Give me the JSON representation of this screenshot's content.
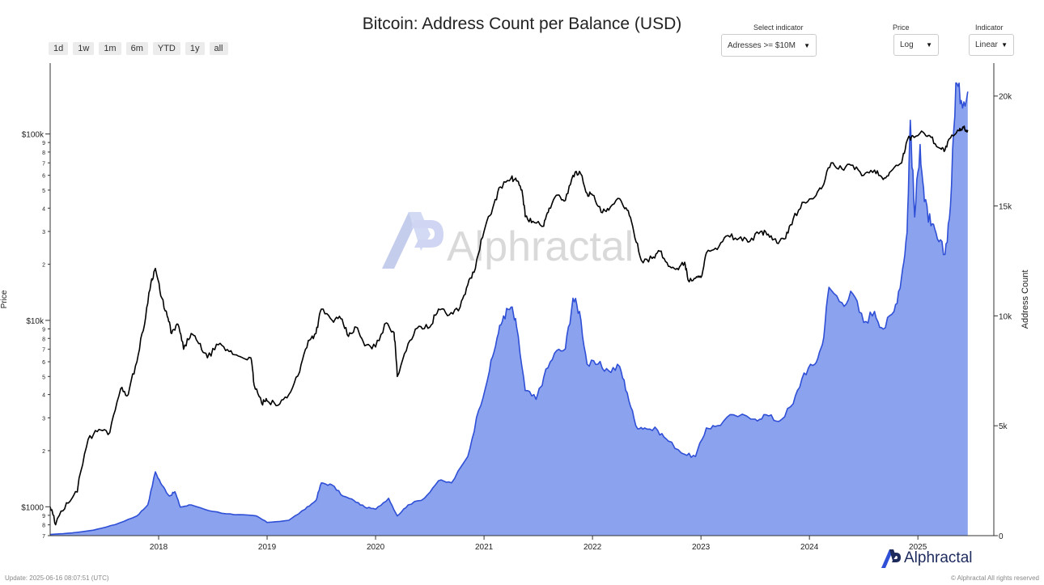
{
  "chart_title": "Bitcoin: Address Count per Balance (USD)",
  "range_buttons": [
    "1d",
    "1w",
    "1m",
    "6m",
    "YTD",
    "1y",
    "all"
  ],
  "controls": {
    "indicator_label": "Select indicator",
    "indicator_value": "Adresses >= $10M",
    "price_label": "Price",
    "price_value": "Log",
    "scale_label": "Indicator",
    "scale_value": "Linear"
  },
  "watermark": "Alphractal",
  "brand": "Alphractal",
  "footer": {
    "update": "Update: 2025-06-16 08:07:51 (UTC)",
    "copyright": "© Alphractal All rights reserved"
  },
  "colors": {
    "price_line": "#000000",
    "area_fill": "#8ba3ef",
    "area_line": "#2f4fd6",
    "brand": "#1d2a5c"
  },
  "chart_data": {
    "type": "line+area",
    "title": "Bitcoin: Address Count per Balance (USD)",
    "left_axis": {
      "label": "Price",
      "scale": "log",
      "range": [
        700,
        240000
      ],
      "major_ticks": [
        {
          "value": 1000,
          "label": "$1000"
        },
        {
          "value": 10000,
          "label": "$10k"
        },
        {
          "value": 100000,
          "label": "$100k"
        }
      ],
      "minor_ticks": [
        {
          "value": 700,
          "label": "7"
        },
        {
          "value": 800,
          "label": "8"
        },
        {
          "value": 900,
          "label": "9"
        },
        {
          "value": 2000,
          "label": "2"
        },
        {
          "value": 3000,
          "label": "3"
        },
        {
          "value": 4000,
          "label": "4"
        },
        {
          "value": 5000,
          "label": "5"
        },
        {
          "value": 6000,
          "label": "6"
        },
        {
          "value": 7000,
          "label": "7"
        },
        {
          "value": 8000,
          "label": "8"
        },
        {
          "value": 9000,
          "label": "9"
        },
        {
          "value": 20000,
          "label": "2"
        },
        {
          "value": 30000,
          "label": "3"
        },
        {
          "value": 40000,
          "label": "4"
        },
        {
          "value": 50000,
          "label": "5"
        },
        {
          "value": 60000,
          "label": "6"
        },
        {
          "value": 70000,
          "label": "7"
        },
        {
          "value": 80000,
          "label": "8"
        },
        {
          "value": 90000,
          "label": "9"
        }
      ]
    },
    "right_axis": {
      "label": "Address Count",
      "scale": "linear",
      "range": [
        0,
        21500
      ],
      "ticks": [
        {
          "value": 0,
          "label": "0"
        },
        {
          "value": 5000,
          "label": "5k"
        },
        {
          "value": 10000,
          "label": "10k"
        },
        {
          "value": 15000,
          "label": "15k"
        },
        {
          "value": 20000,
          "label": "20k"
        }
      ]
    },
    "x_axis": {
      "range": [
        2017.0,
        2025.7
      ],
      "ticks": [
        {
          "value": 2018,
          "label": "2018"
        },
        {
          "value": 2019,
          "label": "2019"
        },
        {
          "value": 2020,
          "label": "2020"
        },
        {
          "value": 2021,
          "label": "2021"
        },
        {
          "value": 2022,
          "label": "2022"
        },
        {
          "value": 2023,
          "label": "2023"
        },
        {
          "value": 2024,
          "label": "2024"
        },
        {
          "value": 2025,
          "label": "2025"
        }
      ]
    },
    "series": [
      {
        "name": "Price",
        "axis": "left",
        "points": [
          [
            2017.0,
            1000
          ],
          [
            2017.05,
            800
          ],
          [
            2017.15,
            1050
          ],
          [
            2017.25,
            1200
          ],
          [
            2017.35,
            2300
          ],
          [
            2017.45,
            2600
          ],
          [
            2017.55,
            2500
          ],
          [
            2017.65,
            4300
          ],
          [
            2017.72,
            4000
          ],
          [
            2017.8,
            6000
          ],
          [
            2017.87,
            9500
          ],
          [
            2017.93,
            16000
          ],
          [
            2017.97,
            19000
          ],
          [
            2018.02,
            13500
          ],
          [
            2018.08,
            10500
          ],
          [
            2018.12,
            8500
          ],
          [
            2018.18,
            9500
          ],
          [
            2018.23,
            7000
          ],
          [
            2018.3,
            8500
          ],
          [
            2018.37,
            7500
          ],
          [
            2018.45,
            6300
          ],
          [
            2018.55,
            7400
          ],
          [
            2018.65,
            6800
          ],
          [
            2018.75,
            6400
          ],
          [
            2018.85,
            6300
          ],
          [
            2018.88,
            4500
          ],
          [
            2018.95,
            3600
          ],
          [
            2019.0,
            3700
          ],
          [
            2019.1,
            3500
          ],
          [
            2019.2,
            4000
          ],
          [
            2019.3,
            5300
          ],
          [
            2019.38,
            7800
          ],
          [
            2019.45,
            8500
          ],
          [
            2019.5,
            11500
          ],
          [
            2019.6,
            10000
          ],
          [
            2019.68,
            10200
          ],
          [
            2019.75,
            8200
          ],
          [
            2019.82,
            9200
          ],
          [
            2019.9,
            7300
          ],
          [
            2020.0,
            7200
          ],
          [
            2020.1,
            9700
          ],
          [
            2020.17,
            8600
          ],
          [
            2020.2,
            5000
          ],
          [
            2020.3,
            7500
          ],
          [
            2020.4,
            9300
          ],
          [
            2020.5,
            9200
          ],
          [
            2020.58,
            11500
          ],
          [
            2020.68,
            10700
          ],
          [
            2020.78,
            11800
          ],
          [
            2020.85,
            15500
          ],
          [
            2020.92,
            19000
          ],
          [
            2021.0,
            30000
          ],
          [
            2021.08,
            40000
          ],
          [
            2021.15,
            52000
          ],
          [
            2021.25,
            58000
          ],
          [
            2021.3,
            56000
          ],
          [
            2021.35,
            50000
          ],
          [
            2021.38,
            36000
          ],
          [
            2021.45,
            34000
          ],
          [
            2021.55,
            32000
          ],
          [
            2021.6,
            40000
          ],
          [
            2021.68,
            47000
          ],
          [
            2021.75,
            44000
          ],
          [
            2021.82,
            60000
          ],
          [
            2021.88,
            63000
          ],
          [
            2021.95,
            48000
          ],
          [
            2022.0,
            47000
          ],
          [
            2022.08,
            38000
          ],
          [
            2022.15,
            39000
          ],
          [
            2022.25,
            45000
          ],
          [
            2022.32,
            39000
          ],
          [
            2022.38,
            30000
          ],
          [
            2022.45,
            21000
          ],
          [
            2022.55,
            21500
          ],
          [
            2022.62,
            23500
          ],
          [
            2022.7,
            19500
          ],
          [
            2022.78,
            19000
          ],
          [
            2022.85,
            20500
          ],
          [
            2022.88,
            16500
          ],
          [
            2022.95,
            16800
          ],
          [
            2023.0,
            17000
          ],
          [
            2023.05,
            23000
          ],
          [
            2023.15,
            24000
          ],
          [
            2023.25,
            28500
          ],
          [
            2023.35,
            27500
          ],
          [
            2023.45,
            26500
          ],
          [
            2023.55,
            30000
          ],
          [
            2023.62,
            29000
          ],
          [
            2023.7,
            26000
          ],
          [
            2023.78,
            27500
          ],
          [
            2023.85,
            35000
          ],
          [
            2023.95,
            43000
          ],
          [
            2024.05,
            46000
          ],
          [
            2024.12,
            52000
          ],
          [
            2024.2,
            70000
          ],
          [
            2024.3,
            65000
          ],
          [
            2024.4,
            68000
          ],
          [
            2024.5,
            60000
          ],
          [
            2024.6,
            64000
          ],
          [
            2024.68,
            57000
          ],
          [
            2024.75,
            63000
          ],
          [
            2024.85,
            70000
          ],
          [
            2024.9,
            92000
          ],
          [
            2024.95,
            98000
          ],
          [
            2025.05,
            102000
          ],
          [
            2025.12,
            96000
          ],
          [
            2025.2,
            84000
          ],
          [
            2025.25,
            82000
          ],
          [
            2025.3,
            95000
          ],
          [
            2025.38,
            104000
          ],
          [
            2025.42,
            108000
          ],
          [
            2025.46,
            105000
          ]
        ]
      },
      {
        "name": "Address Count",
        "axis": "right",
        "points": [
          [
            2017.0,
            50
          ],
          [
            2017.2,
            120
          ],
          [
            2017.4,
            250
          ],
          [
            2017.6,
            500
          ],
          [
            2017.8,
            900
          ],
          [
            2017.9,
            1400
          ],
          [
            2017.97,
            2900
          ],
          [
            2018.03,
            2300
          ],
          [
            2018.1,
            1800
          ],
          [
            2018.15,
            2000
          ],
          [
            2018.2,
            1300
          ],
          [
            2018.3,
            1400
          ],
          [
            2018.5,
            1100
          ],
          [
            2018.7,
            950
          ],
          [
            2018.9,
            900
          ],
          [
            2019.0,
            600
          ],
          [
            2019.2,
            700
          ],
          [
            2019.35,
            1200
          ],
          [
            2019.45,
            1600
          ],
          [
            2019.5,
            2400
          ],
          [
            2019.6,
            2300
          ],
          [
            2019.7,
            1800
          ],
          [
            2019.8,
            1600
          ],
          [
            2019.9,
            1300
          ],
          [
            2020.0,
            1200
          ],
          [
            2020.12,
            1700
          ],
          [
            2020.2,
            900
          ],
          [
            2020.3,
            1400
          ],
          [
            2020.45,
            1700
          ],
          [
            2020.58,
            2500
          ],
          [
            2020.7,
            2400
          ],
          [
            2020.85,
            3600
          ],
          [
            2020.95,
            5700
          ],
          [
            2021.05,
            7500
          ],
          [
            2021.12,
            9000
          ],
          [
            2021.18,
            10000
          ],
          [
            2021.25,
            10400
          ],
          [
            2021.3,
            9500
          ],
          [
            2021.38,
            6600
          ],
          [
            2021.48,
            6200
          ],
          [
            2021.55,
            7200
          ],
          [
            2021.65,
            8300
          ],
          [
            2021.75,
            8500
          ],
          [
            2021.82,
            10800
          ],
          [
            2021.88,
            10200
          ],
          [
            2021.95,
            7800
          ],
          [
            2022.05,
            7800
          ],
          [
            2022.15,
            7500
          ],
          [
            2022.25,
            7700
          ],
          [
            2022.32,
            6500
          ],
          [
            2022.4,
            5000
          ],
          [
            2022.48,
            4900
          ],
          [
            2022.6,
            4800
          ],
          [
            2022.7,
            4300
          ],
          [
            2022.85,
            3700
          ],
          [
            2022.95,
            3600
          ],
          [
            2023.05,
            4900
          ],
          [
            2023.15,
            5000
          ],
          [
            2023.3,
            5500
          ],
          [
            2023.5,
            5300
          ],
          [
            2023.6,
            5500
          ],
          [
            2023.72,
            5200
          ],
          [
            2023.85,
            6000
          ],
          [
            2023.95,
            7400
          ],
          [
            2024.05,
            7800
          ],
          [
            2024.12,
            8700
          ],
          [
            2024.18,
            11300
          ],
          [
            2024.3,
            10600
          ],
          [
            2024.4,
            11000
          ],
          [
            2024.5,
            9700
          ],
          [
            2024.6,
            10200
          ],
          [
            2024.68,
            9400
          ],
          [
            2024.78,
            10200
          ],
          [
            2024.85,
            11800
          ],
          [
            2024.9,
            13800
          ],
          [
            2024.93,
            18900
          ],
          [
            2024.97,
            14500
          ],
          [
            2025.02,
            17800
          ],
          [
            2025.06,
            15200
          ],
          [
            2025.12,
            14100
          ],
          [
            2025.18,
            13500
          ],
          [
            2025.25,
            12800
          ],
          [
            2025.3,
            15000
          ],
          [
            2025.35,
            20600
          ],
          [
            2025.4,
            19800
          ],
          [
            2025.46,
            20200
          ]
        ]
      }
    ]
  }
}
